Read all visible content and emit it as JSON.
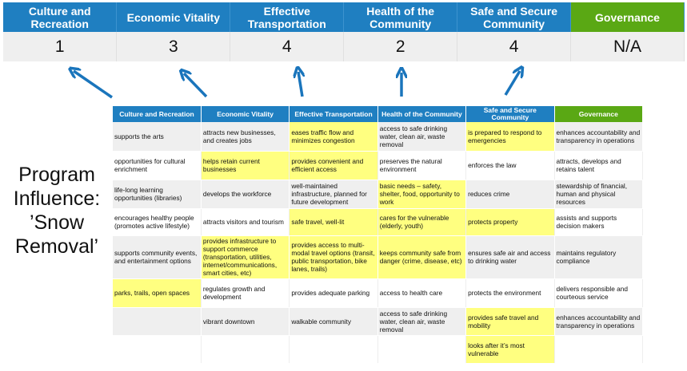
{
  "scores": {
    "headers": [
      "Culture and Recreation",
      "Economic Vitality",
      "Effective Transportation",
      "Health of the Community",
      "Safe and Secure Community",
      "Governance"
    ],
    "values": [
      "1",
      "3",
      "4",
      "2",
      "4",
      "N/A"
    ]
  },
  "program_label": "Program Influence: ’Snow Removal’",
  "colors": {
    "header_blue": "#1f7fc1",
    "governance_green": "#5aa814",
    "highlight": "#ffff80",
    "arrow": "#1a75bc"
  },
  "matrix": {
    "headers": [
      "Culture and Recreation",
      "Economic Vitality",
      "Effective Transportation",
      "Health of the Community",
      "Safe and Secure Community",
      "Governance"
    ],
    "rows": [
      [
        {
          "t": "supports the arts"
        },
        {
          "t": "attracts new businesses, and creates jobs"
        },
        {
          "t": "eases traffic flow and minimizes congestion",
          "h": true
        },
        {
          "t": "access to safe drinking water, clean air, waste removal"
        },
        {
          "t": "is prepared to respond to emergencies",
          "h": true
        },
        {
          "t": "enhances accountability and transparency in operations"
        }
      ],
      [
        {
          "t": "opportunities for cultural enrichment"
        },
        {
          "t": "helps retain current businesses",
          "h": true
        },
        {
          "t": "provides convenient and efficient access",
          "h": true
        },
        {
          "t": "preserves the natural environment"
        },
        {
          "t": "enforces the law"
        },
        {
          "t": "attracts, develops and retains talent"
        }
      ],
      [
        {
          "t": "life-long learning opportunities (libraries)"
        },
        {
          "t": "develops the workforce"
        },
        {
          "t": "well-maintained infrastructure, planned for future development"
        },
        {
          "t": "basic needs – safety, shelter, food, opportunity to work",
          "h": true
        },
        {
          "t": "reduces crime"
        },
        {
          "t": "stewardship of financial, human and physical resources"
        }
      ],
      [
        {
          "t": "encourages healthy people (promotes active lifestyle)"
        },
        {
          "t": "attracts visitors and tourism"
        },
        {
          "t": "safe travel, well-lit",
          "h": true
        },
        {
          "t": "cares for the vulnerable (elderly, youth)",
          "h": true
        },
        {
          "t": "protects property",
          "h": true
        },
        {
          "t": "assists and supports decision makers"
        }
      ],
      [
        {
          "t": "supports community events, and entertainment options"
        },
        {
          "t": "provides infrastructure to support commerce (transportation, utilities, internet/communications, smart cities, etc)",
          "h": true
        },
        {
          "t": "provides access to multi-modal travel options (transit, public transportation, bike lanes, trails)",
          "h": true
        },
        {
          "t": "keeps community safe from danger (crime, disease, etc)",
          "h": true
        },
        {
          "t": "ensures safe air and access to drinking water"
        },
        {
          "t": "maintains regulatory compliance"
        }
      ],
      [
        {
          "t": "parks, trails, open spaces",
          "h": true
        },
        {
          "t": "regulates growth and development"
        },
        {
          "t": "provides adequate parking"
        },
        {
          "t": "access to health care"
        },
        {
          "t": "protects the environment"
        },
        {
          "t": "delivers responsible and courteous service"
        }
      ],
      [
        {
          "t": ""
        },
        {
          "t": "vibrant downtown"
        },
        {
          "t": "walkable community"
        },
        {
          "t": "access to safe drinking water, clean air, waste removal"
        },
        {
          "t": "provides safe travel and mobility",
          "h": true
        },
        {
          "t": "enhances accountability and transparency in operations"
        }
      ],
      [
        {
          "t": ""
        },
        {
          "t": ""
        },
        {
          "t": ""
        },
        {
          "t": ""
        },
        {
          "t": "looks after it’s most vulnerable",
          "h": true
        },
        {
          "t": ""
        }
      ]
    ]
  }
}
